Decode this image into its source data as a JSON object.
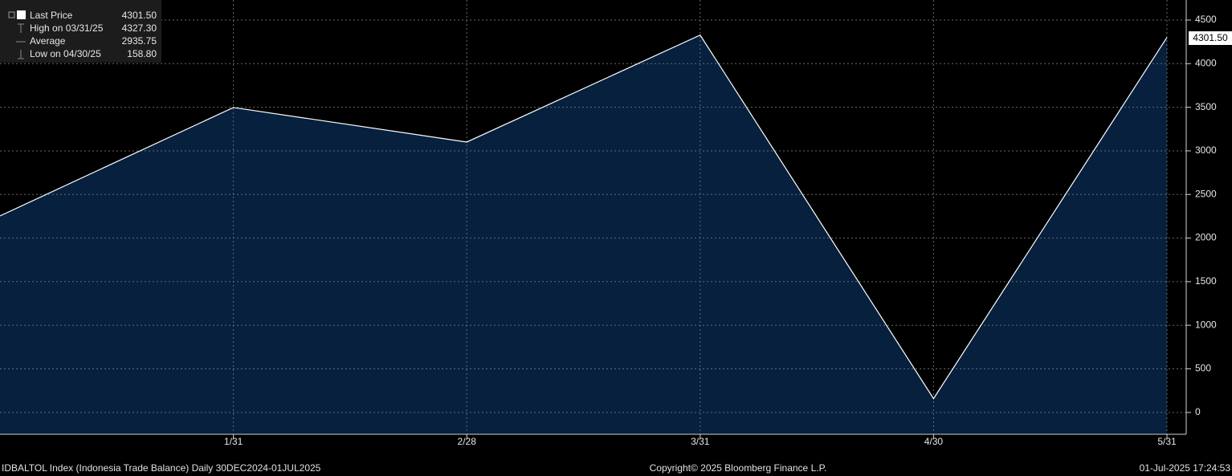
{
  "chart_data": {
    "type": "area",
    "categories": [
      null,
      "1/31",
      "2/28",
      "3/31",
      "4/30",
      "5/31"
    ],
    "series": [
      {
        "name": "Last Price",
        "color": "#ffffff",
        "fill": "#06203e",
        "values": [
          2254,
          3497,
          3101,
          4327.3,
          158.8,
          4301.5
        ]
      }
    ],
    "ylim": [
      -250,
      4730
    ],
    "yticks": [
      0,
      500,
      1000,
      1500,
      2000,
      2500,
      3000,
      3500,
      4000,
      4500
    ],
    "grid": true,
    "legend": [
      {
        "label": "Last Price",
        "value": "4301.50"
      },
      {
        "label": "High on 03/31/25",
        "value": "4327.30"
      },
      {
        "label": "Average",
        "value": "2935.75"
      },
      {
        "label": "Low on 04/30/25",
        "value": "158.80"
      }
    ],
    "last_price_label": "4301.50",
    "footer": {
      "left": "IDBALTOL Index (Indonesia Trade Balance)  Daily 30DEC2024-01JUL2025",
      "center": "Copyright© 2025 Bloomberg Finance L.P.",
      "right": "01-Jul-2025 17:24:53"
    }
  }
}
